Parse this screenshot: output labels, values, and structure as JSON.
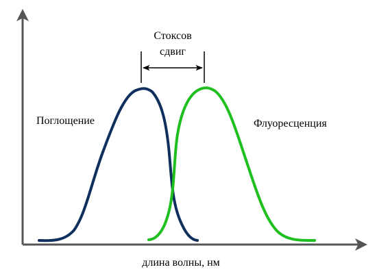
{
  "labels": {
    "stokes_line1": "Стоксов",
    "stokes_line2": "сдвиг",
    "absorption": "Поглощение",
    "fluorescence": "Флуоресценция",
    "x_axis": "длина волны, нм"
  },
  "colors": {
    "absorption": "#0f2f5c",
    "fluorescence": "#1fbf1f",
    "axis": "#555555"
  }
}
